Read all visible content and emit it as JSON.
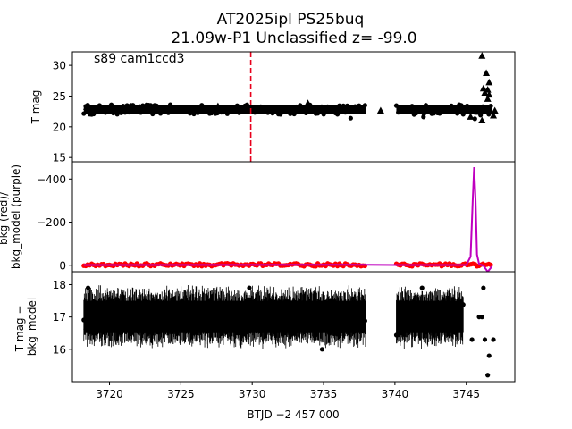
{
  "chart_data": {
    "type": "scatter",
    "title": "AT2025ipl  PS25buq",
    "subtitle": "21.09w-P1 Unclassified z= -99.0",
    "xlabel": "BTJD −2 457 000",
    "xlim": [
      3717.4,
      3748.4
    ],
    "x_ticks": [
      3720,
      3725,
      3730,
      3735,
      3740,
      3745
    ],
    "x_tick_labels": [
      "3720",
      "3725",
      "3730",
      "3735",
      "3740",
      "3745"
    ],
    "panels": [
      {
        "id": "tmag",
        "ylabel": "T mag",
        "ylim": [
          32.2,
          14.3
        ],
        "y_ticks": [
          15,
          20,
          25,
          30
        ],
        "y_tick_labels": [
          "15",
          "20",
          "25",
          "30"
        ],
        "annotation": "s89 cam1ccd3",
        "vline": {
          "x": 3729.9,
          "color": "#e8001c",
          "style": "dashed"
        },
        "series": [
          {
            "kind": "band",
            "color": "#000000",
            "segments": [
              [
                3718.2,
                3738.0
              ],
              [
                3740.1,
                3746.8
              ]
            ],
            "center": 22.8,
            "half_width": 0.7
          },
          {
            "kind": "triangles",
            "color": "#000000",
            "points": [
              [
                3718.4,
                23.2
              ],
              [
                3722.1,
                23.1
              ],
              [
                3727.6,
                23.3
              ],
              [
                3733.9,
                23.8
              ],
              [
                3739.0,
                22.6
              ],
              [
                3741.2,
                23.0
              ],
              [
                3745.3,
                21.6
              ],
              [
                3745.8,
                22.4
              ],
              [
                3746.1,
                21.0
              ],
              [
                3746.4,
                22.9
              ],
              [
                3746.6,
                27.2
              ],
              [
                3746.5,
                24.5
              ],
              [
                3746.3,
                25.5
              ],
              [
                3746.2,
                26.2
              ],
              [
                3746.4,
                28.7
              ],
              [
                3746.6,
                25.2
              ],
              [
                3746.5,
                26.0
              ],
              [
                3746.1,
                31.5
              ],
              [
                3746.9,
                21.8
              ],
              [
                3747.0,
                22.6
              ]
            ]
          },
          {
            "kind": "dots",
            "color": "#000000",
            "points": [
              [
                3731.1,
                22.3
              ],
              [
                3736.9,
                21.4
              ],
              [
                3742.0,
                21.6
              ],
              [
                3745.6,
                21.3
              ],
              [
                3746.0,
                21.9
              ]
            ]
          }
        ]
      },
      {
        "id": "bkg",
        "ylabel": "bkg (red)/\nbkg_model (purple)",
        "ylim": [
          -480,
          30
        ],
        "y_ticks": [
          0,
          -200,
          -400
        ],
        "y_tick_labels": [
          "0",
          "−200",
          "−400"
        ],
        "series": [
          {
            "name": "bkg",
            "kind": "band",
            "color": "#ff0000",
            "segments": [
              [
                3718.2,
                3738.0
              ],
              [
                3740.1,
                3746.8
              ]
            ],
            "center": -2,
            "half_width": 6
          },
          {
            "name": "bkg_model",
            "kind": "line",
            "color": "#bf00bf",
            "points": [
              [
                3718.2,
                -1
              ],
              [
                3738.0,
                -2
              ],
              [
                3740.1,
                -1
              ],
              [
                3745.0,
                -1
              ],
              [
                3745.3,
                -40
              ],
              [
                3745.45,
                -300
              ],
              [
                3745.55,
                -455
              ],
              [
                3745.65,
                -300
              ],
              [
                3745.75,
                -50
              ],
              [
                3745.9,
                -5
              ],
              [
                3746.2,
                2
              ],
              [
                3746.5,
                30
              ],
              [
                3746.8,
                5
              ]
            ]
          }
        ]
      },
      {
        "id": "diff",
        "ylabel": "T mag −\nbkg_model",
        "ylim": [
          18.4,
          15.0
        ],
        "y_ticks": [
          16,
          17,
          18
        ],
        "y_tick_labels": [
          "16",
          "17",
          "18"
        ],
        "series": [
          {
            "kind": "band",
            "color": "#000000",
            "segments": [
              [
                3718.2,
                3738.0
              ],
              [
                3740.1,
                3744.8
              ]
            ],
            "center": 17.0,
            "half_width": 0.5,
            "error_half_width": 0.8
          },
          {
            "kind": "dots",
            "color": "#000000",
            "points": [
              [
                3734.9,
                16.0
              ],
              [
                3729.8,
                17.9
              ],
              [
                3729.0,
                16.5
              ],
              [
                3718.5,
                17.9
              ],
              [
                3741.9,
                17.9
              ],
              [
                3746.5,
                15.2
              ],
              [
                3746.6,
                15.8
              ],
              [
                3746.3,
                16.3
              ],
              [
                3745.9,
                17.0
              ],
              [
                3746.1,
                17.0
              ],
              [
                3746.2,
                17.9
              ],
              [
                3746.9,
                16.3
              ],
              [
                3745.4,
                16.3
              ]
            ]
          }
        ]
      }
    ]
  }
}
